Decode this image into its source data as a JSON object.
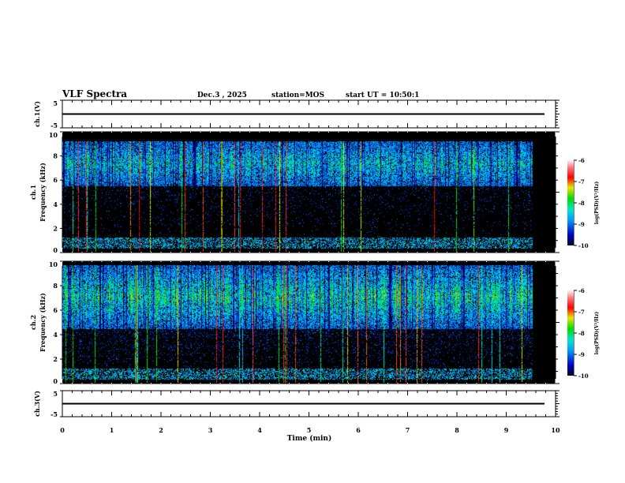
{
  "header": {
    "title": "VLF Spectra",
    "date": "Dec.3 , 2025",
    "station": "station=MOS",
    "start": "start UT = 10:50:1"
  },
  "chart_data": {
    "type": "heatmap",
    "title": "VLF Spectra",
    "xlabel": "Time (min)",
    "xlim": [
      0,
      10
    ],
    "xticks": [
      "0",
      "1",
      "2",
      "3",
      "4",
      "5",
      "6",
      "7",
      "8",
      "9",
      "10"
    ],
    "panels": [
      {
        "name": "ch1-waveform",
        "ylabel": "ch.1(V)",
        "ylim": [
          -5,
          5
        ],
        "yticks": [
          "5",
          "-5"
        ]
      },
      {
        "name": "ch1-spectrogram",
        "ylabel_top": "ch.1",
        "ylabel": "Frequency (kHz)",
        "ylim": [
          0,
          10
        ],
        "yticks": [
          "0",
          "2",
          "4",
          "6",
          "8",
          "10"
        ],
        "band_khz": [
          5.5,
          9.3
        ],
        "data_end_min": 9.8
      },
      {
        "name": "ch2-spectrogram",
        "ylabel_top": "ch.2",
        "ylabel": "Frequency (kHz)",
        "ylim": [
          0,
          10
        ],
        "yticks": [
          "0",
          "2",
          "4",
          "6",
          "8",
          "10"
        ],
        "band_khz": [
          4.5,
          9.8
        ],
        "data_end_min": 9.8
      },
      {
        "name": "ch3-waveform",
        "ylabel": "ch.3(V)",
        "ylim": [
          -5,
          5
        ],
        "yticks": [
          "5",
          "-5"
        ]
      }
    ],
    "colorbar": {
      "label": "log(PSD)(V²/Hz)",
      "range": [
        -10,
        -6
      ],
      "ticks": [
        "-6",
        "-7",
        "-8",
        "-9",
        "-10"
      ]
    }
  }
}
